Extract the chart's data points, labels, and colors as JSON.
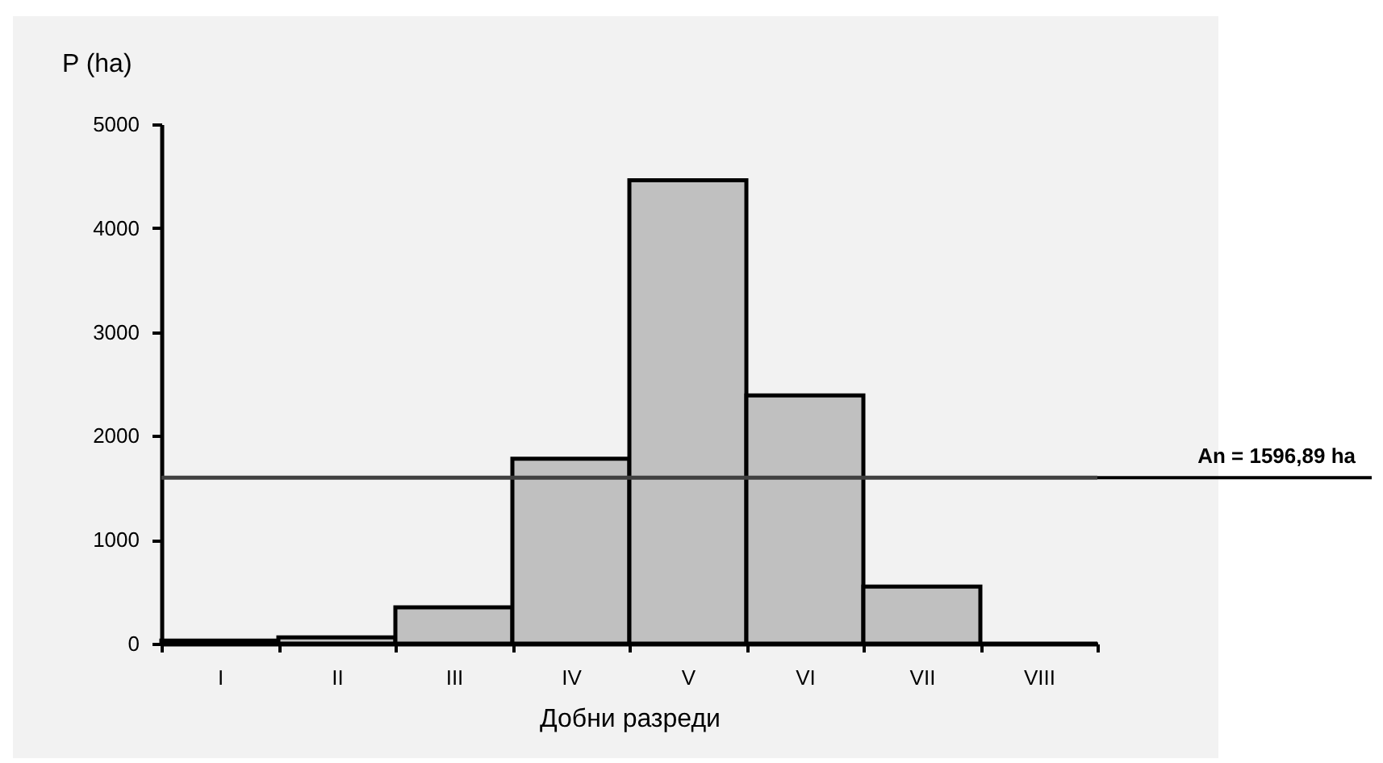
{
  "chart_data": {
    "type": "bar",
    "xlabel": "Добни разреди",
    "ylabel": "P (ha)",
    "categories": [
      "I",
      "II",
      "III",
      "IV",
      "V",
      "VI",
      "VII",
      "VIII"
    ],
    "values": [
      30,
      60,
      350,
      1780,
      4460,
      2390,
      550,
      0
    ],
    "color": "#c0c0c0",
    "ylim": [
      0,
      5000
    ],
    "yticks": [
      0,
      1000,
      2000,
      3000,
      4000,
      5000
    ],
    "grid": false,
    "ref_lines": [
      {
        "axis": "y",
        "value": 1596.89,
        "label": "An = 1596,89 ha",
        "color": "#404040"
      }
    ]
  }
}
